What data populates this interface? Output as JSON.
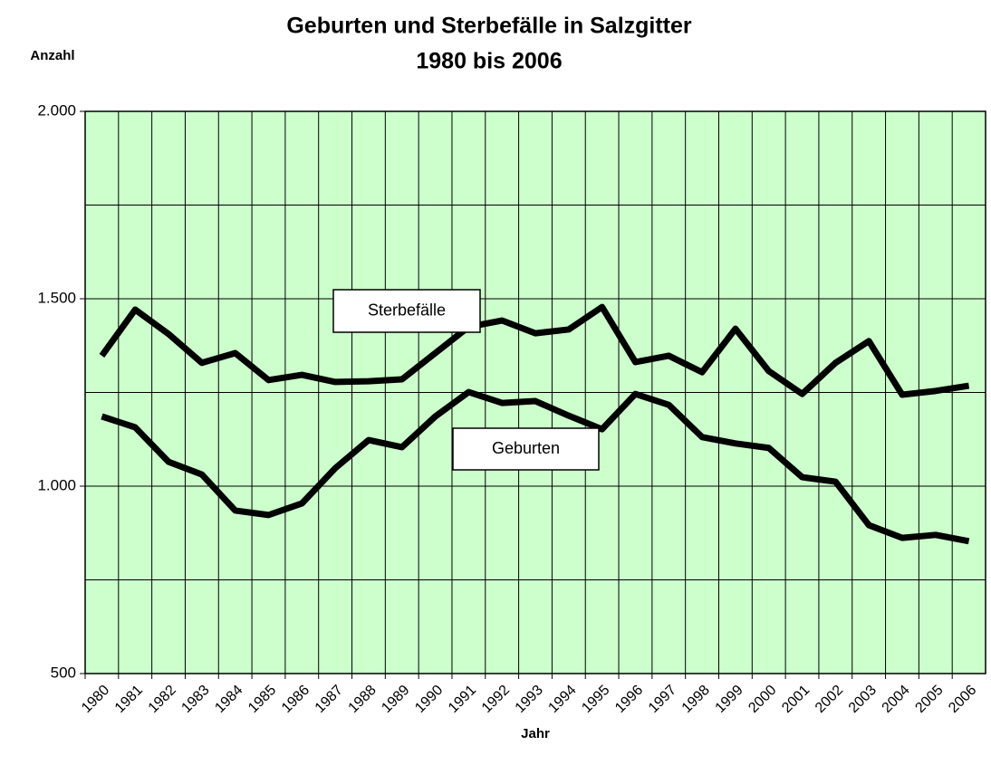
{
  "chart_data": {
    "type": "line",
    "title": "Geburten und Sterbefälle in Salzgitter",
    "subtitle": "1980 bis 2006",
    "y_label": "Anzahl",
    "x_label": "Jahr",
    "categories": [
      "1980",
      "1981",
      "1982",
      "1983",
      "1984",
      "1985",
      "1986",
      "1987",
      "1988",
      "1989",
      "1990",
      "1991",
      "1992",
      "1993",
      "1994",
      "1995",
      "1996",
      "1997",
      "1998",
      "1999",
      "2000",
      "2001",
      "2002",
      "2003",
      "2004",
      "2005",
      "2006"
    ],
    "series": [
      {
        "name": "Sterbefälle",
        "color": "#000000",
        "values": [
          1348,
          1471,
          1406,
          1329,
          1355,
          1283,
          1297,
          1278,
          1280,
          1285,
          1355,
          1425,
          1442,
          1408,
          1418,
          1478,
          1331,
          1348,
          1304,
          1420,
          1307,
          1246,
          1329,
          1387,
          1244,
          1254,
          1268
        ]
      },
      {
        "name": "Geburten",
        "color": "#000000",
        "values": [
          1186,
          1157,
          1065,
          1031,
          935,
          923,
          954,
          1048,
          1123,
          1104,
          1186,
          1251,
          1222,
          1227,
          1188,
          1152,
          1246,
          1217,
          1131,
          1114,
          1102,
          1024,
          1012,
          896,
          862,
          870,
          853
        ]
      }
    ],
    "ylim": [
      500,
      2000
    ],
    "yticks": [
      {
        "value": 500,
        "label": "500"
      },
      {
        "value": 1000,
        "label": "1.000"
      },
      {
        "value": 1500,
        "label": "1.500"
      },
      {
        "value": 2000,
        "label": "2.000"
      }
    ],
    "ygrid_minor": [
      750,
      1250,
      1750
    ],
    "grid": true,
    "background": "#ccffcc"
  }
}
